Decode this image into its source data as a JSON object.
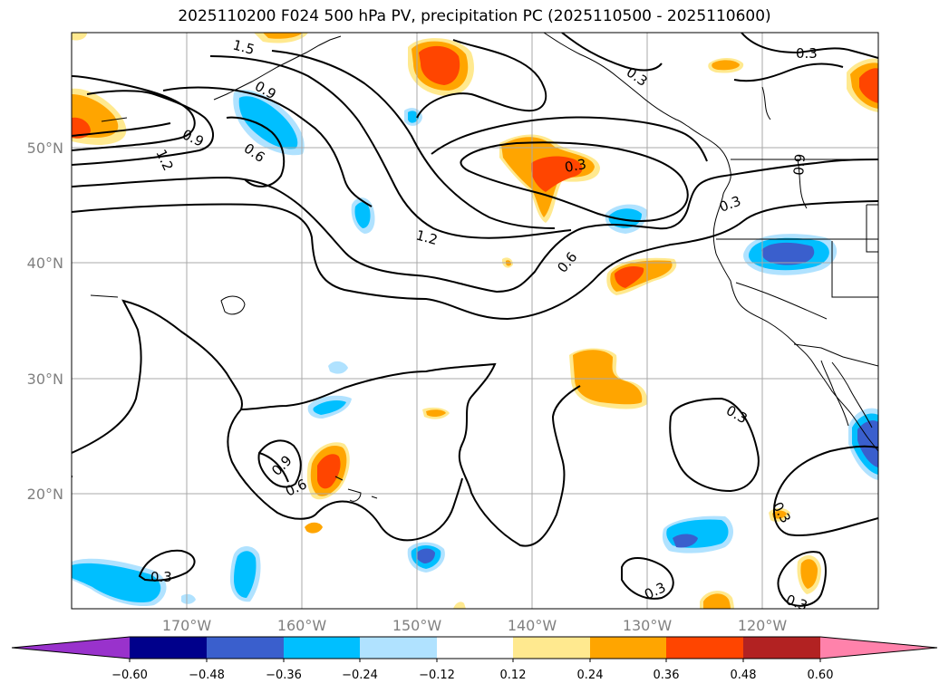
{
  "title": "2025110200 F024 500 hPa PV, precipitation PC (2025110500 - 2025110600)",
  "axes": {
    "lon_labels": [
      "170°W",
      "160°W",
      "150°W",
      "140°W",
      "130°W",
      "120°W"
    ],
    "lat_labels": [
      "50°N",
      "40°N",
      "30°N",
      "20°N"
    ],
    "lon_range": [
      "180°",
      "110°W"
    ],
    "lat_range": [
      "10°N",
      "60°N"
    ],
    "grid": true
  },
  "colorbar": {
    "tick_labels": [
      "−0.60",
      "−0.48",
      "−0.36",
      "−0.24",
      "−0.12",
      "0.12",
      "0.24",
      "0.36",
      "0.48",
      "0.60"
    ],
    "colors": [
      "#9932cc",
      "#00008b",
      "#3a5fcd",
      "#00bfff",
      "#b0e2ff",
      "#ffffff",
      "#ffe98f",
      "#ffa500",
      "#ff4500",
      "#b22222",
      "#ff82ab"
    ],
    "extend": "both"
  },
  "contours": {
    "pv_labels": [
      "1.5",
      "0.9",
      "1.2",
      "0.9",
      "0.6",
      "1.2",
      "0.3",
      "0.6",
      "0.3",
      "0.3",
      "0.9",
      "0.3",
      "0.9",
      "0.6",
      "0.3",
      "0.3",
      "0.3",
      "0.3",
      "0.3"
    ]
  },
  "colors": {
    "contour": "#000000",
    "grid": "#a9a9a9",
    "coastline": "#000000"
  }
}
